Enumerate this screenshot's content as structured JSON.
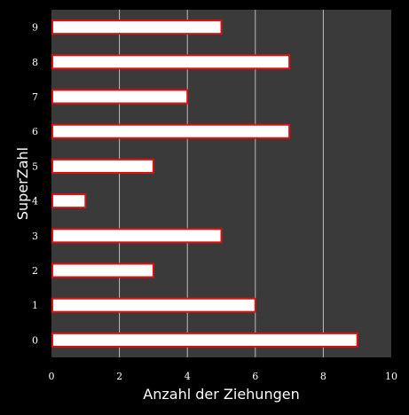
{
  "chart_data": {
    "type": "bar",
    "orientation": "horizontal",
    "title": "",
    "xlabel": "Anzahl der Ziehungen",
    "ylabel": "SuperZahl",
    "categories": [
      "0",
      "1",
      "2",
      "3",
      "4",
      "5",
      "6",
      "7",
      "8",
      "9"
    ],
    "values": [
      9,
      6,
      3,
      5,
      1,
      3,
      7,
      4,
      7,
      5
    ],
    "xlim": [
      0,
      10
    ],
    "xticks": [
      "0",
      "2",
      "4",
      "6",
      "8",
      "10"
    ],
    "grid": "vertical",
    "legend": "none",
    "colors": {
      "background": "#000000",
      "plot_area": "#3a3a3a",
      "gridline": "#bdbdbd",
      "bar_fill": "#ffffff",
      "bar_edge": "#e01010",
      "text": "#ffffff"
    }
  }
}
